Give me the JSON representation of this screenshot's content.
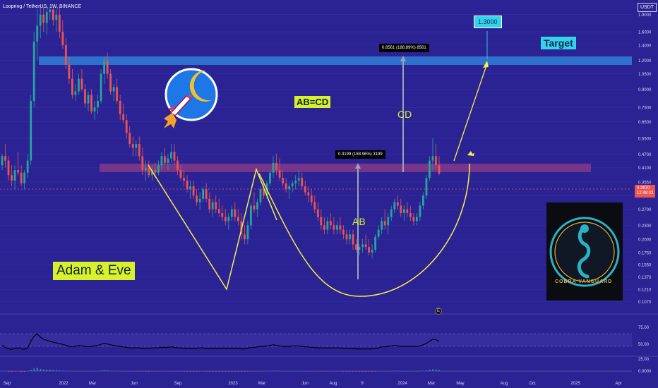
{
  "chart_data": {
    "type": "candlestick",
    "symbol_label": "Loopring / TetherUS, 1W, BINANCE",
    "currency": "USDT",
    "y_scale": "log",
    "ylim": [
      0.098,
      2.05
    ],
    "price_ticks": [
      "1.9000",
      "1.6000",
      "1.4000",
      "1.2000",
      "1.0500",
      "0.9000",
      "0.7500",
      "0.6500",
      "0.5500",
      "0.4700",
      "0.4100",
      "0.3550",
      "0.3100",
      "0.2700",
      "0.2300",
      "0.2000",
      "0.1750",
      "0.1550",
      "0.1370",
      "0.1210",
      "0.1070"
    ],
    "time_ticks": [
      "Sep",
      "2022",
      "Mar",
      "Jun",
      "Sep",
      "2023",
      "Mar",
      "Jun",
      "Aug",
      "9",
      "2024",
      "Mar",
      "May",
      "Aug",
      "Oct",
      "2025",
      "Apr"
    ],
    "last_price": "0.3870",
    "countdown": "12:48:02",
    "target_value": "1.3000",
    "target_label": "Target",
    "measure_cd": "0.8561 (188.89%) 8561",
    "measure_ab": "0.3199 (188.96%) 3199",
    "label_ab": "AB",
    "label_cd": "CD",
    "label_abcd": "AB=CD",
    "pattern_label": "Adam & Eve",
    "rsi_ticks": [
      "75.00",
      "50.00",
      "25.00"
    ],
    "macd_ticks": [
      "0.0000"
    ],
    "logo_text": "COBRA VANGUARD",
    "colors": {
      "background": "#2b2394",
      "up": "#26a69a",
      "down": "#ef5350",
      "pattern_line": "#f5ef47",
      "zone_blue": "#2f7fd6",
      "zone_pink": "#b2457f"
    },
    "candles": [
      [
        0.42,
        0.47,
        0.4,
        0.46
      ],
      [
        0.46,
        0.52,
        0.41,
        0.44
      ],
      [
        0.44,
        0.46,
        0.36,
        0.38
      ],
      [
        0.38,
        0.42,
        0.34,
        0.36
      ],
      [
        0.36,
        0.42,
        0.33,
        0.4
      ],
      [
        0.4,
        0.48,
        0.38,
        0.39
      ],
      [
        0.39,
        0.42,
        0.34,
        0.35
      ],
      [
        0.35,
        0.4,
        0.33,
        0.39
      ],
      [
        0.39,
        0.47,
        0.37,
        0.44
      ],
      [
        0.44,
        0.85,
        0.42,
        0.8
      ],
      [
        0.8,
        1.6,
        0.75,
        1.45
      ],
      [
        1.45,
        2.0,
        1.2,
        1.7
      ],
      [
        1.7,
        2.05,
        1.5,
        1.9
      ],
      [
        1.9,
        2.05,
        1.6,
        1.75
      ],
      [
        1.75,
        2.05,
        1.55,
        1.95
      ],
      [
        1.95,
        2.05,
        1.8,
        2.0
      ],
      [
        2.0,
        2.05,
        1.7,
        1.8
      ],
      [
        1.8,
        2.0,
        1.6,
        1.9
      ],
      [
        1.9,
        2.05,
        1.5,
        1.6
      ],
      [
        1.6,
        1.8,
        1.35,
        1.4
      ],
      [
        1.4,
        1.5,
        1.1,
        1.15
      ],
      [
        1.15,
        1.25,
        0.95,
        1.0
      ],
      [
        1.0,
        1.1,
        0.82,
        0.85
      ],
      [
        0.85,
        0.95,
        0.8,
        0.88
      ],
      [
        0.88,
        1.05,
        0.85,
        1.0
      ],
      [
        1.0,
        1.1,
        0.88,
        0.9
      ],
      [
        0.9,
        0.95,
        0.75,
        0.78
      ],
      [
        0.78,
        0.88,
        0.72,
        0.85
      ],
      [
        0.85,
        0.9,
        0.7,
        0.72
      ],
      [
        0.72,
        0.8,
        0.66,
        0.75
      ],
      [
        0.75,
        0.85,
        0.7,
        0.8
      ],
      [
        0.8,
        1.1,
        0.78,
        1.05
      ],
      [
        1.05,
        1.25,
        0.95,
        1.2
      ],
      [
        1.2,
        1.3,
        1.0,
        1.05
      ],
      [
        1.05,
        1.1,
        0.85,
        0.88
      ],
      [
        0.88,
        0.95,
        0.8,
        0.92
      ],
      [
        0.92,
        1.0,
        0.78,
        0.8
      ],
      [
        0.8,
        0.85,
        0.66,
        0.7
      ],
      [
        0.7,
        0.78,
        0.64,
        0.66
      ],
      [
        0.66,
        0.7,
        0.55,
        0.58
      ],
      [
        0.58,
        0.62,
        0.5,
        0.52
      ],
      [
        0.52,
        0.56,
        0.46,
        0.5
      ],
      [
        0.5,
        0.54,
        0.46,
        0.52
      ],
      [
        0.52,
        0.56,
        0.44,
        0.46
      ],
      [
        0.46,
        0.5,
        0.38,
        0.4
      ],
      [
        0.4,
        0.44,
        0.36,
        0.41
      ],
      [
        0.41,
        0.44,
        0.37,
        0.38
      ],
      [
        0.38,
        0.42,
        0.36,
        0.4
      ],
      [
        0.4,
        0.43,
        0.37,
        0.39
      ],
      [
        0.39,
        0.44,
        0.38,
        0.42
      ],
      [
        0.42,
        0.48,
        0.4,
        0.46
      ],
      [
        0.46,
        0.5,
        0.42,
        0.43
      ],
      [
        0.43,
        0.47,
        0.4,
        0.45
      ],
      [
        0.45,
        0.52,
        0.43,
        0.48
      ],
      [
        0.48,
        0.52,
        0.42,
        0.44
      ],
      [
        0.44,
        0.46,
        0.38,
        0.4
      ],
      [
        0.4,
        0.42,
        0.36,
        0.37
      ],
      [
        0.37,
        0.4,
        0.34,
        0.36
      ],
      [
        0.36,
        0.38,
        0.32,
        0.33
      ],
      [
        0.33,
        0.36,
        0.3,
        0.34
      ],
      [
        0.34,
        0.36,
        0.3,
        0.31
      ],
      [
        0.31,
        0.33,
        0.28,
        0.29
      ],
      [
        0.29,
        0.32,
        0.27,
        0.3
      ],
      [
        0.3,
        0.34,
        0.29,
        0.33
      ],
      [
        0.33,
        0.35,
        0.29,
        0.3
      ],
      [
        0.3,
        0.32,
        0.26,
        0.27
      ],
      [
        0.27,
        0.3,
        0.25,
        0.29
      ],
      [
        0.29,
        0.31,
        0.26,
        0.27
      ],
      [
        0.27,
        0.3,
        0.25,
        0.26
      ],
      [
        0.26,
        0.28,
        0.24,
        0.25
      ],
      [
        0.25,
        0.27,
        0.23,
        0.24
      ],
      [
        0.24,
        0.26,
        0.22,
        0.25
      ],
      [
        0.25,
        0.28,
        0.24,
        0.27
      ],
      [
        0.27,
        0.29,
        0.24,
        0.25
      ],
      [
        0.25,
        0.27,
        0.23,
        0.24
      ],
      [
        0.24,
        0.26,
        0.2,
        0.21
      ],
      [
        0.21,
        0.23,
        0.19,
        0.2
      ],
      [
        0.2,
        0.24,
        0.19,
        0.23
      ],
      [
        0.23,
        0.29,
        0.22,
        0.28
      ],
      [
        0.28,
        0.32,
        0.26,
        0.27
      ],
      [
        0.27,
        0.3,
        0.25,
        0.29
      ],
      [
        0.29,
        0.34,
        0.28,
        0.33
      ],
      [
        0.33,
        0.36,
        0.3,
        0.31
      ],
      [
        0.31,
        0.36,
        0.3,
        0.35
      ],
      [
        0.35,
        0.4,
        0.34,
        0.39
      ],
      [
        0.39,
        0.46,
        0.37,
        0.43
      ],
      [
        0.43,
        0.47,
        0.38,
        0.4
      ],
      [
        0.4,
        0.45,
        0.36,
        0.37
      ],
      [
        0.37,
        0.4,
        0.34,
        0.35
      ],
      [
        0.35,
        0.37,
        0.32,
        0.33
      ],
      [
        0.33,
        0.35,
        0.3,
        0.34
      ],
      [
        0.34,
        0.36,
        0.32,
        0.35
      ],
      [
        0.35,
        0.38,
        0.33,
        0.36
      ],
      [
        0.36,
        0.4,
        0.34,
        0.37
      ],
      [
        0.37,
        0.39,
        0.33,
        0.34
      ],
      [
        0.34,
        0.36,
        0.31,
        0.32
      ],
      [
        0.32,
        0.34,
        0.29,
        0.31
      ],
      [
        0.31,
        0.33,
        0.28,
        0.29
      ],
      [
        0.29,
        0.31,
        0.26,
        0.27
      ],
      [
        0.27,
        0.29,
        0.24,
        0.25
      ],
      [
        0.25,
        0.27,
        0.22,
        0.23
      ],
      [
        0.23,
        0.25,
        0.21,
        0.22
      ],
      [
        0.22,
        0.25,
        0.21,
        0.24
      ],
      [
        0.24,
        0.26,
        0.22,
        0.23
      ],
      [
        0.23,
        0.25,
        0.21,
        0.22
      ],
      [
        0.22,
        0.24,
        0.21,
        0.23
      ],
      [
        0.23,
        0.25,
        0.21,
        0.22
      ],
      [
        0.22,
        0.23,
        0.2,
        0.21
      ],
      [
        0.21,
        0.22,
        0.19,
        0.2
      ],
      [
        0.2,
        0.22,
        0.19,
        0.21
      ],
      [
        0.21,
        0.22,
        0.18,
        0.19
      ],
      [
        0.19,
        0.2,
        0.175,
        0.18
      ],
      [
        0.18,
        0.19,
        0.17,
        0.185
      ],
      [
        0.185,
        0.2,
        0.175,
        0.19
      ],
      [
        0.19,
        0.21,
        0.18,
        0.185
      ],
      [
        0.185,
        0.2,
        0.17,
        0.175
      ],
      [
        0.175,
        0.19,
        0.165,
        0.18
      ],
      [
        0.18,
        0.21,
        0.175,
        0.205
      ],
      [
        0.205,
        0.23,
        0.2,
        0.22
      ],
      [
        0.22,
        0.25,
        0.21,
        0.24
      ],
      [
        0.24,
        0.27,
        0.22,
        0.23
      ],
      [
        0.23,
        0.26,
        0.21,
        0.25
      ],
      [
        0.25,
        0.28,
        0.24,
        0.27
      ],
      [
        0.27,
        0.3,
        0.26,
        0.29
      ],
      [
        0.29,
        0.31,
        0.27,
        0.28
      ],
      [
        0.28,
        0.3,
        0.25,
        0.26
      ],
      [
        0.26,
        0.28,
        0.24,
        0.27
      ],
      [
        0.27,
        0.29,
        0.25,
        0.26
      ],
      [
        0.26,
        0.28,
        0.24,
        0.25
      ],
      [
        0.25,
        0.26,
        0.23,
        0.24
      ],
      [
        0.24,
        0.26,
        0.23,
        0.25
      ],
      [
        0.25,
        0.29,
        0.24,
        0.28
      ],
      [
        0.28,
        0.32,
        0.27,
        0.31
      ],
      [
        0.31,
        0.38,
        0.3,
        0.37
      ],
      [
        0.37,
        0.46,
        0.36,
        0.44
      ],
      [
        0.44,
        0.55,
        0.4,
        0.46
      ],
      [
        0.46,
        0.52,
        0.4,
        0.42
      ],
      [
        0.42,
        0.46,
        0.38,
        0.387
      ]
    ],
    "rsi": [
      52,
      48,
      45,
      44,
      46,
      47,
      45,
      44,
      47,
      60,
      70,
      75,
      68,
      64,
      62,
      60,
      58,
      57,
      55,
      54,
      52,
      50,
      49,
      50,
      52,
      51,
      50,
      49,
      50,
      51,
      52,
      54,
      56,
      55,
      53,
      52,
      51,
      50,
      49,
      48,
      47,
      47,
      47,
      47,
      46,
      46,
      46,
      47,
      47,
      47,
      48,
      48,
      48,
      49,
      48,
      47,
      47,
      46,
      46,
      46,
      46,
      46,
      47,
      47,
      46,
      46,
      46,
      46,
      46,
      46,
      46,
      46,
      46,
      46,
      46,
      45,
      45,
      46,
      48,
      48,
      49,
      50,
      50,
      51,
      52,
      53,
      52,
      51,
      50,
      50,
      50,
      51,
      51,
      51,
      50,
      49,
      49,
      48,
      48,
      47,
      47,
      47,
      47,
      47,
      47,
      47,
      47,
      46,
      46,
      46,
      46,
      45,
      45,
      45,
      45,
      45,
      45,
      46,
      47,
      49,
      49,
      50,
      51,
      52,
      51,
      50,
      50,
      50,
      50,
      50,
      50,
      51,
      53,
      56,
      60,
      64,
      63,
      60
    ]
  }
}
